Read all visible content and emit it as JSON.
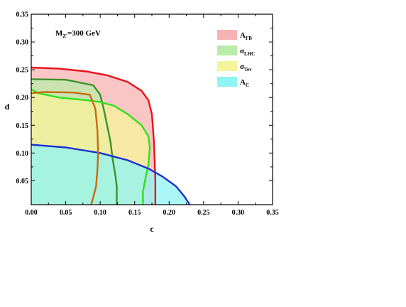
{
  "chart_data": {
    "type": "area",
    "xlabel": "c",
    "ylabel": "d",
    "xlim": [
      0,
      0.35
    ],
    "ylim": [
      0.007,
      0.35
    ],
    "xticks": [
      "0.00",
      "0.05",
      "0.10",
      "0.15",
      "0.20",
      "0.25",
      "0.30",
      "0.35"
    ],
    "yticks": [
      "0.05",
      "0.10",
      "0.15",
      "0.20",
      "0.25",
      "0.30",
      "0.35"
    ],
    "annotation": {
      "main": "M",
      "sub": "Z'",
      "rest": "=300 GeV"
    },
    "legend_position": "top-right",
    "series": [
      {
        "name": "A_FB",
        "label_main": "A",
        "label_sub": "FB",
        "fill": "#f7b2b2",
        "stroke": "#e8121b",
        "x": [
          0.0,
          0.04,
          0.08,
          0.11,
          0.14,
          0.16,
          0.17,
          0.175,
          0.178,
          0.18,
          0.18
        ],
        "y": [
          0.254,
          0.252,
          0.247,
          0.24,
          0.228,
          0.212,
          0.195,
          0.17,
          0.12,
          0.05,
          0.007
        ]
      },
      {
        "name": "sigma_LHC",
        "label_main": "σ",
        "label_sub": "LHC",
        "fill": "#b9ecaa",
        "stroke": "#3f8f2b",
        "x": [
          0.0,
          0.05,
          0.09,
          0.1,
          0.105,
          0.11,
          0.115,
          0.118,
          0.122,
          0.124,
          0.124,
          0.124
        ],
        "y": [
          0.233,
          0.232,
          0.222,
          0.205,
          0.18,
          0.15,
          0.12,
          0.09,
          0.06,
          0.04,
          0.02,
          0.007
        ]
      },
      {
        "name": "sigma_Tev",
        "label_main": "σ",
        "label_sub": "Tev",
        "fill": "#f6f39a",
        "stroke": "#2fe01d",
        "x": [
          0.0,
          0.01,
          0.04,
          0.08,
          0.1,
          0.12,
          0.14,
          0.16,
          0.17,
          0.172,
          0.17,
          0.165,
          0.162,
          0.162
        ],
        "y": [
          0.215,
          0.208,
          0.2,
          0.195,
          0.192,
          0.185,
          0.17,
          0.15,
          0.13,
          0.11,
          0.08,
          0.05,
          0.03,
          0.007
        ]
      },
      {
        "name": "A_C",
        "label_main": "A",
        "label_sub": "C",
        "fill": "#8ff4f4",
        "stroke": "#1b2fcf",
        "x": [
          0.0,
          0.05,
          0.1,
          0.14,
          0.17,
          0.19,
          0.21,
          0.222,
          0.23
        ],
        "y": [
          0.115,
          0.11,
          0.1,
          0.087,
          0.072,
          0.058,
          0.04,
          0.022,
          0.007
        ]
      }
    ],
    "extra_curves": [
      {
        "stroke": "#c8690e",
        "x": [
          0.0,
          0.02,
          0.06,
          0.085,
          0.093,
          0.096,
          0.097,
          0.096,
          0.094,
          0.09,
          0.087
        ],
        "y": [
          0.208,
          0.21,
          0.209,
          0.205,
          0.18,
          0.14,
          0.1,
          0.07,
          0.04,
          0.02,
          0.007
        ]
      }
    ]
  }
}
